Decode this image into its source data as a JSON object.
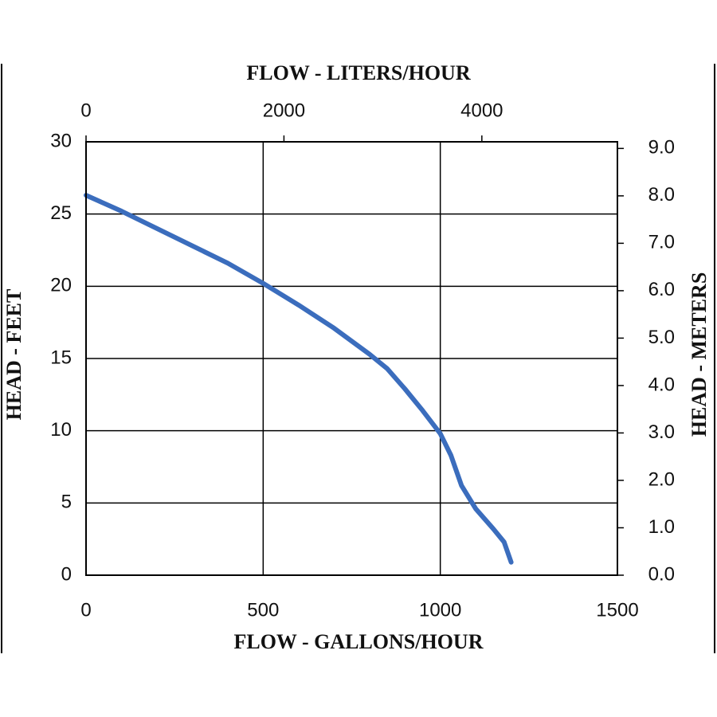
{
  "chart_data": {
    "type": "line",
    "title": "FLOW - LITERS/HOUR",
    "x_label": "FLOW - GALLONS/HOUR",
    "y_label": "HEAD - FEET",
    "y2_label": "HEAD - METERS",
    "x": [
      0,
      100,
      200,
      300,
      400,
      500,
      600,
      700,
      800,
      850,
      900,
      950,
      1000,
      1030,
      1060,
      1100,
      1150,
      1180,
      1200
    ],
    "series": [
      {
        "name": "Head",
        "color": "#3b6dbd",
        "values": [
          26.3,
          25.2,
          24.0,
          22.8,
          21.6,
          20.2,
          18.7,
          17.1,
          15.3,
          14.3,
          12.9,
          11.4,
          9.8,
          8.3,
          6.2,
          4.6,
          3.2,
          2.3,
          0.9
        ]
      }
    ],
    "xlim": [
      0,
      1500
    ],
    "xticks": [
      0,
      500,
      1000,
      1500
    ],
    "ylim": [
      0,
      30
    ],
    "yticks": [
      0,
      5,
      10,
      15,
      20,
      25,
      30
    ],
    "x2lim": [
      0,
      5370
    ],
    "x2ticks": [
      0,
      2000,
      4000
    ],
    "y2lim": [
      0,
      9.14
    ],
    "y2ticks": [
      {
        "value": 0,
        "label": "0.0"
      },
      {
        "value": 1,
        "label": "1.0"
      },
      {
        "value": 2,
        "label": "2.0"
      },
      {
        "value": 3,
        "label": "3.0"
      },
      {
        "value": 4,
        "label": "4.0"
      },
      {
        "value": 5,
        "label": "5.0"
      },
      {
        "value": 6,
        "label": "6.0"
      },
      {
        "value": 7,
        "label": "7.0"
      },
      {
        "value": 8,
        "label": "8.0"
      },
      {
        "value": 9,
        "label": "9.0"
      }
    ],
    "grid": true
  }
}
